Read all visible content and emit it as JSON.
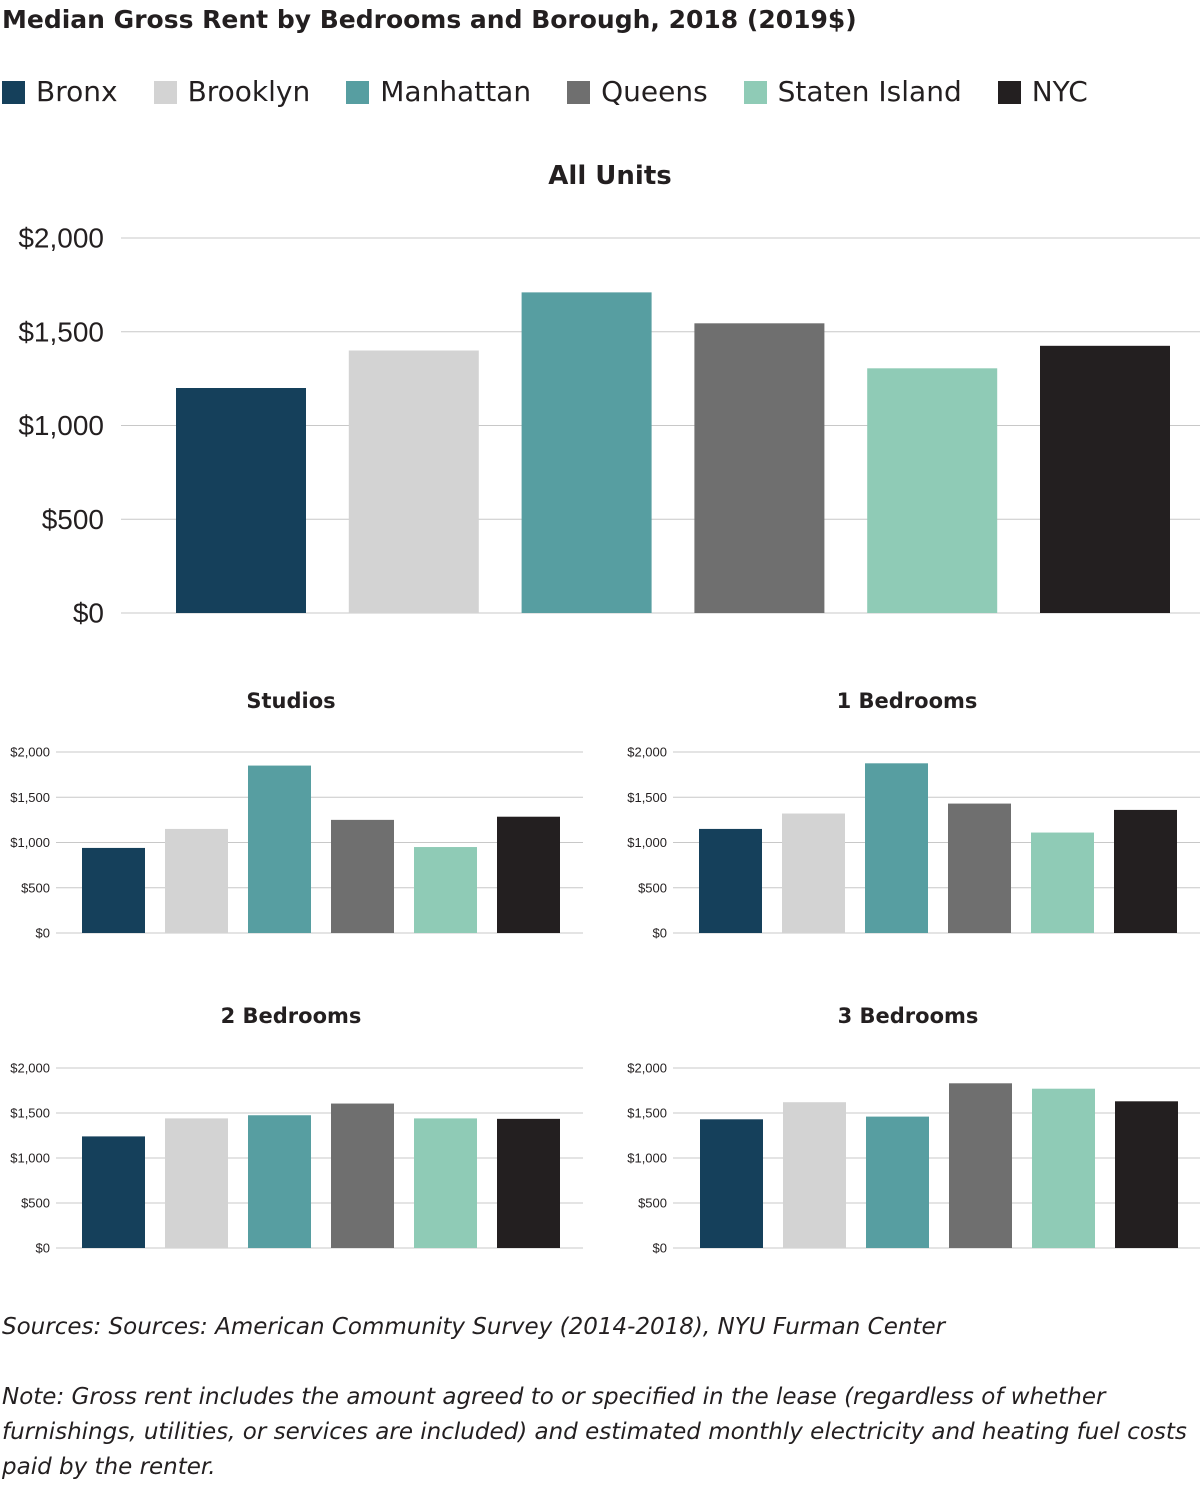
{
  "title": "Median Gross Rent by Bedrooms and Borough, 2018 (2019$)",
  "legend": [
    {
      "label": "Bronx",
      "color": "#15405b"
    },
    {
      "label": "Brooklyn",
      "color": "#d3d3d3"
    },
    {
      "label": "Manhattan",
      "color": "#579ea1"
    },
    {
      "label": "Queens",
      "color": "#6f6f6f"
    },
    {
      "label": "Staten Island",
      "color": "#8fcbb6"
    },
    {
      "label": "NYC",
      "color": "#231f20"
    }
  ],
  "chart_data": [
    {
      "type": "bar",
      "title": "All Units",
      "categories": [
        "Bronx",
        "Brooklyn",
        "Manhattan",
        "Queens",
        "Staten Island",
        "NYC"
      ],
      "values": [
        1200,
        1400,
        1710,
        1545,
        1305,
        1425
      ],
      "ylim": [
        0,
        2000
      ],
      "yticks": [
        "$0",
        "$500",
        "$1,000",
        "$1,500",
        "$2,000"
      ],
      "grid": true
    },
    {
      "type": "bar",
      "title": "Studios",
      "categories": [
        "Bronx",
        "Brooklyn",
        "Manhattan",
        "Queens",
        "Staten Island",
        "NYC"
      ],
      "values": [
        940,
        1150,
        1850,
        1250,
        950,
        1285
      ],
      "ylim": [
        0,
        2000
      ],
      "yticks": [
        "$0",
        "$500",
        "$1,000",
        "$1,500",
        "$2,000"
      ],
      "grid": true
    },
    {
      "type": "bar",
      "title": "1 Bedrooms",
      "categories": [
        "Bronx",
        "Brooklyn",
        "Manhattan",
        "Queens",
        "Staten Island",
        "NYC"
      ],
      "values": [
        1150,
        1320,
        1875,
        1430,
        1110,
        1360
      ],
      "ylim": [
        0,
        2000
      ],
      "yticks": [
        "$0",
        "$500",
        "$1,000",
        "$1,500",
        "$2,000"
      ],
      "grid": true
    },
    {
      "type": "bar",
      "title": "2 Bedrooms",
      "categories": [
        "Bronx",
        "Brooklyn",
        "Manhattan",
        "Queens",
        "Staten Island",
        "NYC"
      ],
      "values": [
        1240,
        1440,
        1475,
        1605,
        1440,
        1435
      ],
      "ylim": [
        0,
        2000
      ],
      "yticks": [
        "$0",
        "$500",
        "$1,000",
        "$1,500",
        "$2,000"
      ],
      "grid": true
    },
    {
      "type": "bar",
      "title": "3 Bedrooms",
      "categories": [
        "Bronx",
        "Brooklyn",
        "Manhattan",
        "Queens",
        "Staten Island",
        "NYC"
      ],
      "values": [
        1430,
        1620,
        1460,
        1830,
        1770,
        1630
      ],
      "ylim": [
        0,
        2000
      ],
      "yticks": [
        "$0",
        "$500",
        "$1,000",
        "$1,500",
        "$2,000"
      ],
      "grid": true
    }
  ],
  "sources": "Sources: Sources: American Community Survey (2014-2018), NYU Furman Center",
  "note": "Note: Gross rent includes the amount agreed to or specified in the lease (regardless of whether furnishings, utilities, or services are included) and estimated monthly electricity and heating fuel costs paid by the renter."
}
